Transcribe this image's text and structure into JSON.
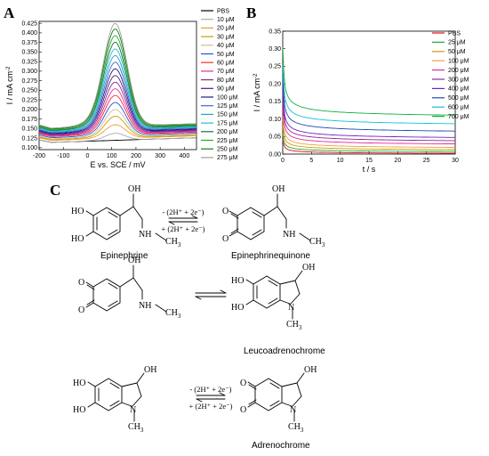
{
  "panels": {
    "a": "A",
    "b": "B",
    "c": "C"
  },
  "chart_data": [
    {
      "type": "line",
      "xlabel": "E vs. SCE / mV",
      "ylabel": "I / mA cm",
      "ylabel_sup": "-2",
      "xlim": [
        -200,
        450
      ],
      "ylim": [
        0.095,
        0.43
      ],
      "x_ticks": [
        "-200",
        "-100",
        "0",
        "100",
        "200",
        "300",
        "400"
      ],
      "y_ticks": [
        "0.100",
        "0.125",
        "0.150",
        "0.175",
        "0.200",
        "0.225",
        "0.250",
        "0.275",
        "0.300",
        "0.325",
        "0.350",
        "0.375",
        "0.400",
        "0.425"
      ],
      "peak_x": 115,
      "legend_position": "right",
      "series": [
        {
          "name": "PBS",
          "color": "#000000",
          "base": 0.113,
          "slope": 2e-05,
          "peak": 0.0
        },
        {
          "name": "10 μM",
          "color": "#aaaaaa",
          "base": 0.113,
          "slope": 2e-05,
          "peak": 0.018
        },
        {
          "name": "20 μM",
          "color": "#e8a030",
          "base": 0.118,
          "slope": 2e-05,
          "peak": 0.035
        },
        {
          "name": "30 μM",
          "color": "#c8a000",
          "base": 0.12,
          "slope": 2e-05,
          "peak": 0.055
        },
        {
          "name": "40 μM",
          "color": "#c7c2a0",
          "base": 0.122,
          "slope": 2e-05,
          "peak": 0.07
        },
        {
          "name": "50 μM",
          "color": "#2255dd",
          "base": 0.125,
          "slope": 2e-05,
          "peak": 0.085
        },
        {
          "name": "60 μM",
          "color": "#ff2a2a",
          "base": 0.128,
          "slope": 2e-05,
          "peak": 0.1
        },
        {
          "name": "70 μM",
          "color": "#e52a9a",
          "base": 0.13,
          "slope": 2e-05,
          "peak": 0.115
        },
        {
          "name": "80 μM",
          "color": "#8a2a9a",
          "base": 0.132,
          "slope": 2e-05,
          "peak": 0.13
        },
        {
          "name": "90 μM",
          "color": "#4a2080",
          "base": 0.134,
          "slope": 2e-05,
          "peak": 0.145
        },
        {
          "name": "100 μM",
          "color": "#1a1a8a",
          "base": 0.136,
          "slope": 2e-05,
          "peak": 0.16
        },
        {
          "name": "125 μM",
          "color": "#4a64c0",
          "base": 0.138,
          "slope": 2e-05,
          "peak": 0.175
        },
        {
          "name": "150 μM",
          "color": "#1fa5c8",
          "base": 0.14,
          "slope": 2e-05,
          "peak": 0.19
        },
        {
          "name": "175 μM",
          "color": "#20c0d0",
          "base": 0.142,
          "slope": 2e-05,
          "peak": 0.205
        },
        {
          "name": "200 μM",
          "color": "#1a6a4a",
          "base": 0.144,
          "slope": 2e-05,
          "peak": 0.22
        },
        {
          "name": "225 μM",
          "color": "#20b020",
          "base": 0.146,
          "slope": 2e-05,
          "peak": 0.235
        },
        {
          "name": "250 μM",
          "color": "#1a7a1a",
          "base": 0.148,
          "slope": 2e-05,
          "peak": 0.25
        },
        {
          "name": "275 μM",
          "color": "#a0a0a0",
          "base": 0.15,
          "slope": 2e-05,
          "peak": 0.262
        }
      ]
    },
    {
      "type": "line",
      "xlabel": "t / s",
      "ylabel": "I / mA cm",
      "ylabel_sup": "-2",
      "xlim": [
        0,
        30
      ],
      "ylim": [
        0.0,
        0.35
      ],
      "x_ticks": [
        "0",
        "5",
        "10",
        "15",
        "20",
        "25",
        "30"
      ],
      "y_ticks": [
        "0.00",
        "0.05",
        "0.10",
        "0.15",
        "0.20",
        "0.25",
        "0.30",
        "0.35"
      ],
      "legend_position": "top-right",
      "series": [
        {
          "name": "PBS",
          "color": "#e01010",
          "start": 0.05,
          "end": 0.0
        },
        {
          "name": "25 μM",
          "color": "#2ea02e",
          "start": 0.07,
          "end": 0.004
        },
        {
          "name": "50 μM",
          "color": "#c8a000",
          "start": 0.1,
          "end": 0.008
        },
        {
          "name": "100 μM",
          "color": "#f0a040",
          "start": 0.13,
          "end": 0.013
        },
        {
          "name": "200 μM",
          "color": "#e52a9a",
          "start": 0.16,
          "end": 0.022
        },
        {
          "name": "300 μM",
          "color": "#8a2a9a",
          "start": 0.19,
          "end": 0.03
        },
        {
          "name": "400 μM",
          "color": "#7020c0",
          "start": 0.22,
          "end": 0.038
        },
        {
          "name": "500 μM",
          "color": "#1a4ab0",
          "start": 0.26,
          "end": 0.055
        },
        {
          "name": "600 μM",
          "color": "#10c0e0",
          "start": 0.3,
          "end": 0.075
        },
        {
          "name": "700 μM",
          "color": "#10b040",
          "start": 0.35,
          "end": 0.098
        }
      ]
    }
  ],
  "scheme": {
    "row1": {
      "left_name": "Epinephrine",
      "right_name": "Epinephrinequinone",
      "top_label": "- (2H⁺ + 2e⁻)",
      "bottom_label": "+ (2H⁺ + 2e⁻)"
    },
    "row2": {
      "right_name": "Leucoadrenochrome"
    },
    "row3": {
      "right_name": "Adrenochrome",
      "top_label": "- (2H⁺ + 2e⁻)",
      "bottom_label": "+ (2H⁺ + 2e⁻)"
    },
    "atoms": {
      "ho": "HO",
      "oh": "OH",
      "o": "O",
      "n": "N",
      "ch3": "CH",
      "sub3": "3",
      "h": "H"
    }
  }
}
